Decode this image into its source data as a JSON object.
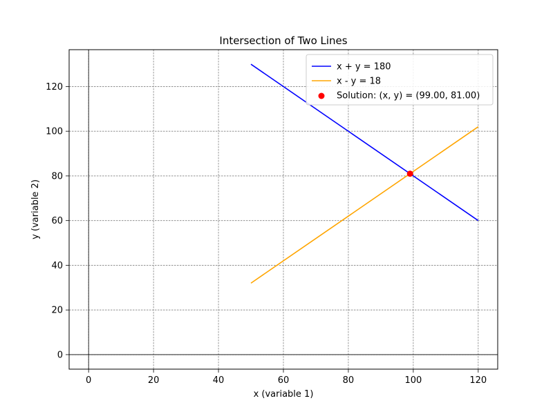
{
  "chart_data": {
    "type": "line",
    "title": "Intersection of Two Lines",
    "xlabel": "x (variable 1)",
    "ylabel": "y (variable 2)",
    "xlim": [
      -6,
      126
    ],
    "ylim": [
      -6.5,
      136.5
    ],
    "xticks": [
      0,
      20,
      40,
      60,
      80,
      100,
      120
    ],
    "yticks": [
      0,
      20,
      40,
      60,
      80,
      100,
      120
    ],
    "grid": true,
    "legend_position": "top-right",
    "series": [
      {
        "name": "x + y = 180",
        "color": "#0000ff",
        "x": [
          50,
          120
        ],
        "y": [
          130,
          60
        ]
      },
      {
        "name": "x - y = 18",
        "color": "#ffa500",
        "x": [
          50,
          120
        ],
        "y": [
          32,
          102
        ]
      }
    ],
    "points": [
      {
        "name": "Solution: (x, y) = (99.00, 81.00)",
        "color": "#ff0000",
        "x": 99,
        "y": 81
      }
    ],
    "reference_lines": [
      {
        "axis": "x",
        "value": 0,
        "color": "#000000"
      },
      {
        "axis": "y",
        "value": 0,
        "color": "#000000"
      }
    ]
  }
}
